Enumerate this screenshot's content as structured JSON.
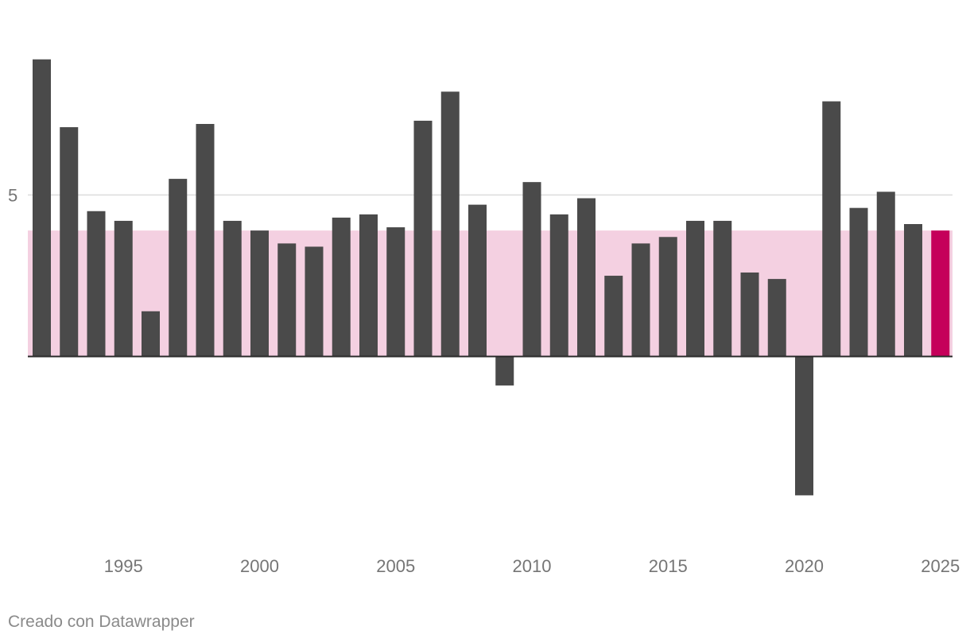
{
  "chart_data": {
    "type": "bar",
    "x": [
      1992,
      1993,
      1994,
      1995,
      1996,
      1997,
      1998,
      1999,
      2000,
      2001,
      2002,
      2003,
      2004,
      2005,
      2006,
      2007,
      2008,
      2009,
      2010,
      2011,
      2012,
      2013,
      2014,
      2015,
      2016,
      2017,
      2018,
      2019,
      2020,
      2021,
      2022,
      2023,
      2024,
      2025
    ],
    "values": [
      9.2,
      7.1,
      4.5,
      4.2,
      1.4,
      5.5,
      7.2,
      4.2,
      3.9,
      3.5,
      3.4,
      4.3,
      4.4,
      4.0,
      7.3,
      8.2,
      4.7,
      -0.9,
      5.4,
      4.4,
      4.9,
      2.5,
      3.5,
      3.7,
      4.2,
      4.2,
      2.6,
      2.4,
      -4.3,
      7.9,
      4.6,
      5.1,
      4.1,
      3.9
    ],
    "highlight_index": 33,
    "band": [
      0,
      3.9
    ],
    "ylim": [
      -5.2,
      10.3
    ],
    "y_ticks": [
      {
        "value": 5,
        "label": "5"
      }
    ],
    "x_ticks": [
      {
        "value": 1995,
        "label": "1995"
      },
      {
        "value": 2000,
        "label": "2000"
      },
      {
        "value": 2005,
        "label": "2005"
      },
      {
        "value": 2010,
        "label": "2010"
      },
      {
        "value": 2015,
        "label": "2015"
      },
      {
        "value": 2020,
        "label": "2020"
      },
      {
        "value": 2025,
        "label": "2025"
      }
    ],
    "grid": true,
    "title": "",
    "xlabel": "",
    "ylabel": "",
    "colors": {
      "bar": "#4a4a4a",
      "highlight": "#c5005a",
      "band": "#f4d0e1",
      "grid": "#dcdcdc",
      "baseline": "#2b2b2b"
    }
  },
  "credit": "Creado con Datawrapper"
}
